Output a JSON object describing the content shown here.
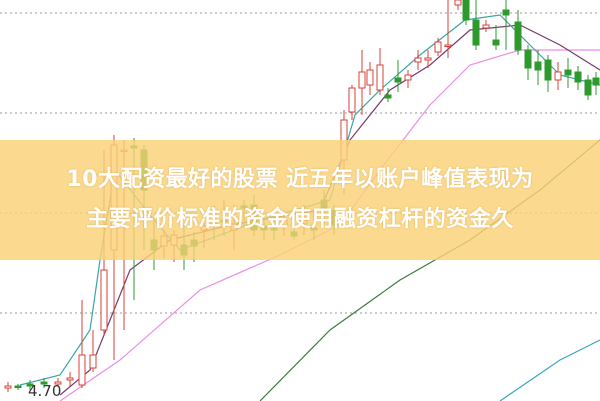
{
  "chart_data": {
    "type": "candlestick",
    "title": "",
    "price_label": "4.70",
    "grid": true,
    "colors": {
      "up": "#d9413a",
      "down": "#2e9a2e",
      "ma_short": "#3aa6a6",
      "ma_mid": "#7a3a6e",
      "ma_long": "#e98ee6",
      "ma_60": "#3c7d3c",
      "ma_120": "#3aa6c0"
    }
  },
  "banner": {
    "line1": "10大配资最好的股票 近五年以账户峰值表现为",
    "line2": "主要评价标准的资金使用融资杠杆的资金久",
    "color": "#f9d27a"
  }
}
